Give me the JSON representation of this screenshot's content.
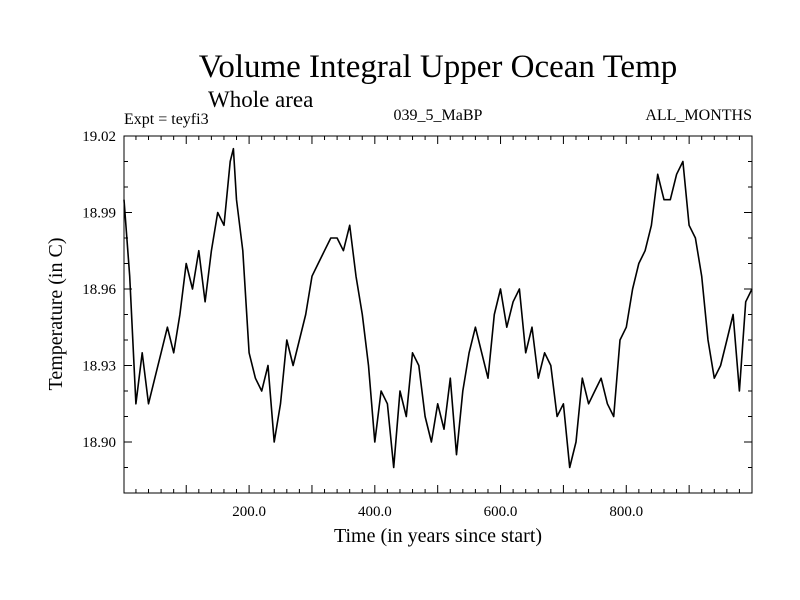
{
  "chart_data": {
    "type": "line",
    "title": "Volume Integral Upper Ocean Temp",
    "subtitle": "Whole area",
    "expt_label": "Expt = teyfi3",
    "run_label": "039_5_MaBP",
    "months_label": "ALL_MONTHS",
    "xlabel": "Time (in years since start)",
    "ylabel": "Temperature (in C)",
    "xlim": [
      1,
      1000
    ],
    "ylim": [
      18.88,
      19.02
    ],
    "x_ticks": [
      200,
      400,
      600,
      800
    ],
    "x_tick_labels": [
      "200.0",
      "400.0",
      "600.0",
      "800.0"
    ],
    "y_ticks": [
      18.9,
      18.93,
      18.96,
      18.99,
      19.02
    ],
    "y_tick_labels": [
      "18.90",
      "18.93",
      "18.96",
      "18.99",
      "19.02"
    ],
    "line_color": "#000000",
    "series": [
      {
        "name": "Volume Integral Upper Ocean Temp",
        "x": [
          1,
          10,
          20,
          30,
          40,
          50,
          60,
          70,
          80,
          90,
          100,
          110,
          120,
          130,
          140,
          150,
          160,
          170,
          175,
          180,
          190,
          200,
          210,
          220,
          230,
          240,
          250,
          260,
          270,
          280,
          290,
          300,
          310,
          320,
          330,
          340,
          350,
          360,
          370,
          380,
          390,
          400,
          410,
          420,
          430,
          440,
          450,
          460,
          470,
          480,
          490,
          500,
          510,
          520,
          530,
          540,
          550,
          560,
          570,
          580,
          590,
          600,
          610,
          620,
          630,
          640,
          650,
          660,
          670,
          680,
          690,
          700,
          710,
          720,
          730,
          740,
          750,
          760,
          770,
          780,
          790,
          800,
          810,
          820,
          830,
          840,
          850,
          860,
          870,
          880,
          890,
          900,
          910,
          920,
          930,
          940,
          950,
          960,
          970,
          980,
          990,
          1000
        ],
        "y": [
          18.995,
          18.965,
          18.915,
          18.935,
          18.915,
          18.925,
          18.935,
          18.945,
          18.935,
          18.95,
          18.97,
          18.96,
          18.975,
          18.955,
          18.975,
          18.99,
          18.985,
          19.01,
          19.015,
          18.995,
          18.975,
          18.935,
          18.925,
          18.92,
          18.93,
          18.9,
          18.915,
          18.94,
          18.93,
          18.94,
          18.95,
          18.965,
          18.97,
          18.975,
          18.98,
          18.98,
          18.975,
          18.985,
          18.965,
          18.95,
          18.93,
          18.9,
          18.92,
          18.915,
          18.89,
          18.92,
          18.91,
          18.935,
          18.93,
          18.91,
          18.9,
          18.915,
          18.905,
          18.925,
          18.895,
          18.92,
          18.935,
          18.945,
          18.935,
          18.925,
          18.95,
          18.96,
          18.945,
          18.955,
          18.96,
          18.935,
          18.945,
          18.925,
          18.935,
          18.93,
          18.91,
          18.915,
          18.89,
          18.9,
          18.925,
          18.915,
          18.92,
          18.925,
          18.915,
          18.91,
          18.94,
          18.945,
          18.96,
          18.97,
          18.975,
          18.985,
          19.005,
          18.995,
          18.995,
          19.005,
          19.01,
          18.985,
          18.98,
          18.965,
          18.94,
          18.925,
          18.93,
          18.94,
          18.95,
          18.92,
          18.955,
          18.96
        ]
      }
    ]
  }
}
